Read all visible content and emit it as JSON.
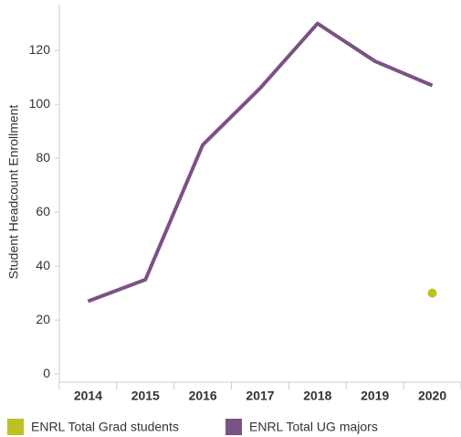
{
  "chart_data": {
    "type": "line",
    "y_label": "Student Headcount Enrollment",
    "categories": [
      "2014",
      "2015",
      "2016",
      "2017",
      "2018",
      "2019",
      "2020"
    ],
    "series": [
      {
        "name": "ENRL Total Grad students",
        "color": "#bfbf26",
        "values": [
          null,
          null,
          null,
          null,
          null,
          null,
          30
        ]
      },
      {
        "name": "ENRL Total UG majors",
        "color": "#7b5284",
        "values": [
          27,
          35,
          85,
          106,
          130,
          116,
          107
        ]
      }
    ],
    "ylim": [
      -3,
      137
    ],
    "yticks": [
      0,
      20,
      40,
      60,
      80,
      100,
      120
    ],
    "grid": false
  }
}
